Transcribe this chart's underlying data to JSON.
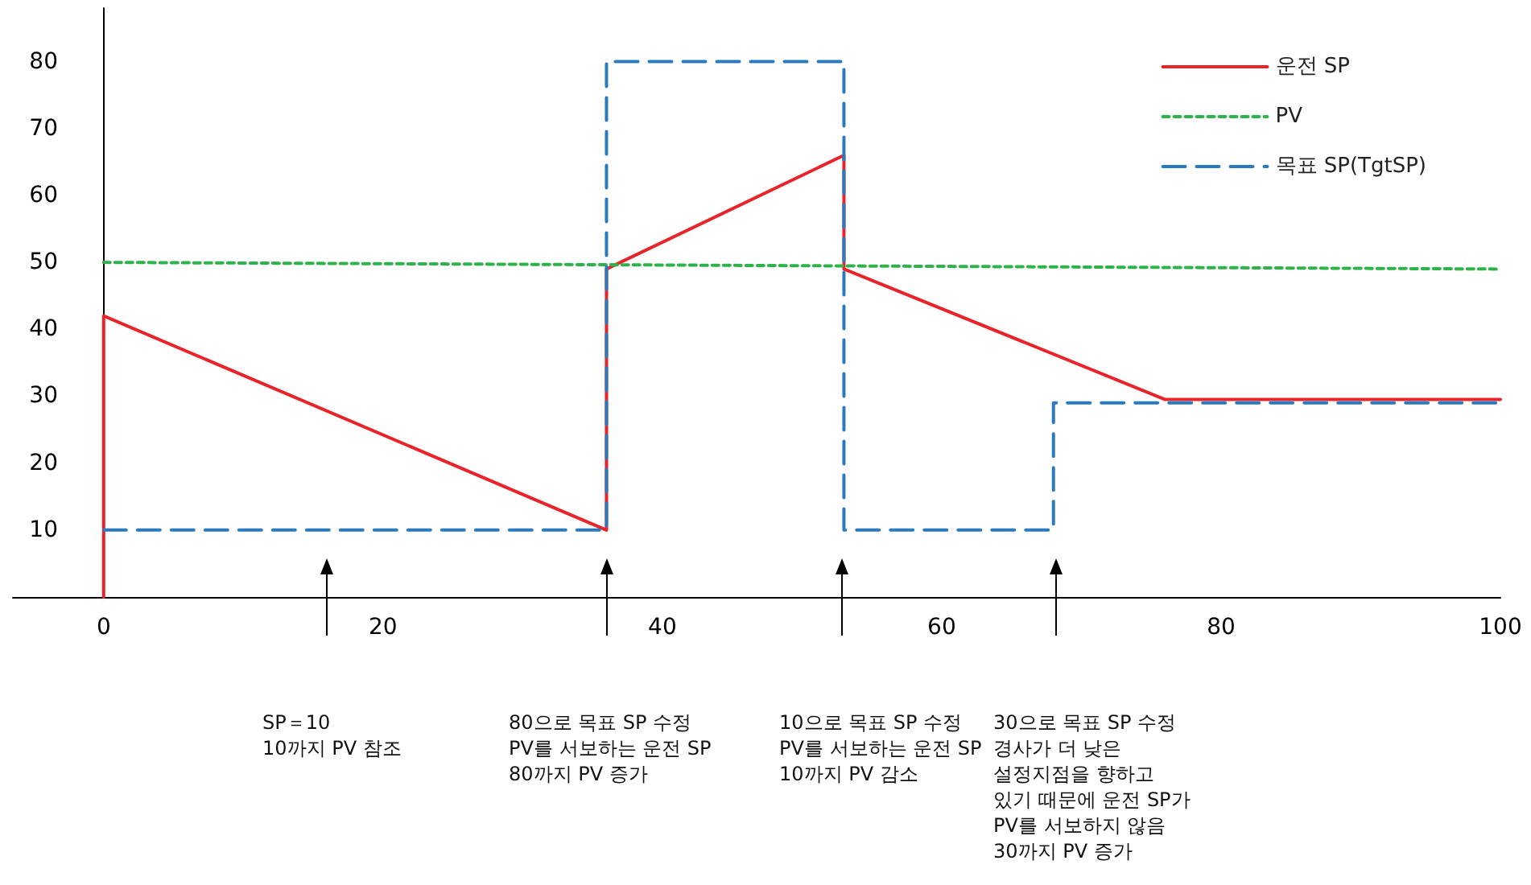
{
  "chart_data": {
    "type": "line",
    "xlim": [
      -6.5,
      100
    ],
    "xticks": [
      0,
      20,
      40,
      60,
      80,
      100
    ],
    "ylim": [
      0,
      88
    ],
    "yticks": [
      10,
      20,
      30,
      40,
      50,
      60,
      70,
      80
    ],
    "legend": "top right",
    "marker": "none",
    "series": [
      {
        "name": "운전 SP",
        "color": "#e8242a",
        "line_style": "solid",
        "x": [
          0,
          0,
          36,
          36,
          53,
          53,
          76,
          100
        ],
        "values": [
          0,
          42,
          10,
          49,
          66,
          49,
          29.5,
          29.5
        ]
      },
      {
        "name": "PV",
        "color": "#2db34a",
        "line_style": "dotted",
        "x": [
          0,
          100
        ],
        "values": [
          50,
          49
        ]
      },
      {
        "name": "목표 SP(TgtSP)",
        "color": "#2a7ac0",
        "line_style": "dashed",
        "x": [
          0,
          36,
          36,
          53,
          53,
          68,
          68,
          100
        ],
        "values": [
          10,
          10,
          80,
          80,
          10,
          10,
          29,
          29
        ]
      }
    ],
    "annotations": [
      "SP＝10\n10까지 PV 참조",
      "80으로 목표 SP 수정\nPV를 서보하는 운전 SP\n80까지 PV 증가",
      "10으로 목표 SP 수정\nPV를 서보하는 운전 SP\n10까지 PV 감소",
      "30으로 목표 SP 수정\n경사가 더 낮은\n설정지점을 향하고\n있기 때문에 운전 SP가\nPV를 서보하지 않음\n30까지 PV 증가"
    ]
  }
}
